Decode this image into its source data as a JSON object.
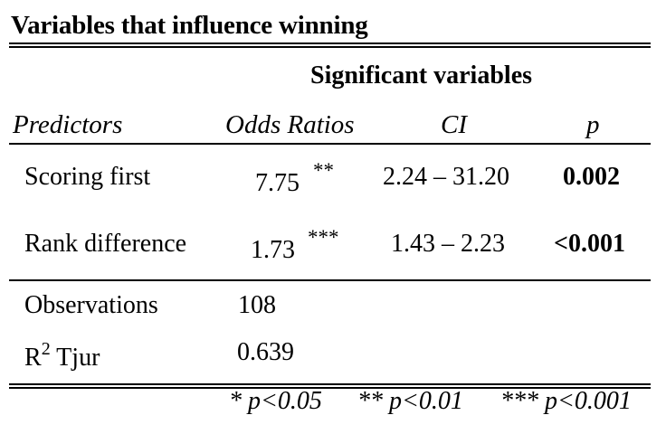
{
  "table": {
    "title": "Variables that influence winning",
    "model_header": "Significant variables",
    "columns": {
      "predictors": "Predictors",
      "odds_ratios": "Odds Ratios",
      "ci": "CI",
      "p": "p"
    },
    "rows": [
      {
        "predictor": "Scoring first",
        "odds_ratio": "7.75",
        "stars": "**",
        "ci": "2.24 – 31.20",
        "p": "0.002"
      },
      {
        "predictor": "Rank difference",
        "odds_ratio": "1.73",
        "stars": "***",
        "ci": "1.43 – 2.23",
        "p": "<0.001"
      }
    ],
    "stats": {
      "observations_label": "Observations",
      "observations_value": "108",
      "r2_label_base": "R",
      "r2_label_sup": "2",
      "r2_label_rest": " Tjur",
      "r2_value": "0.639"
    },
    "footnotes": [
      "* p<0.05",
      "** p<0.01",
      "*** p<0.001"
    ]
  }
}
